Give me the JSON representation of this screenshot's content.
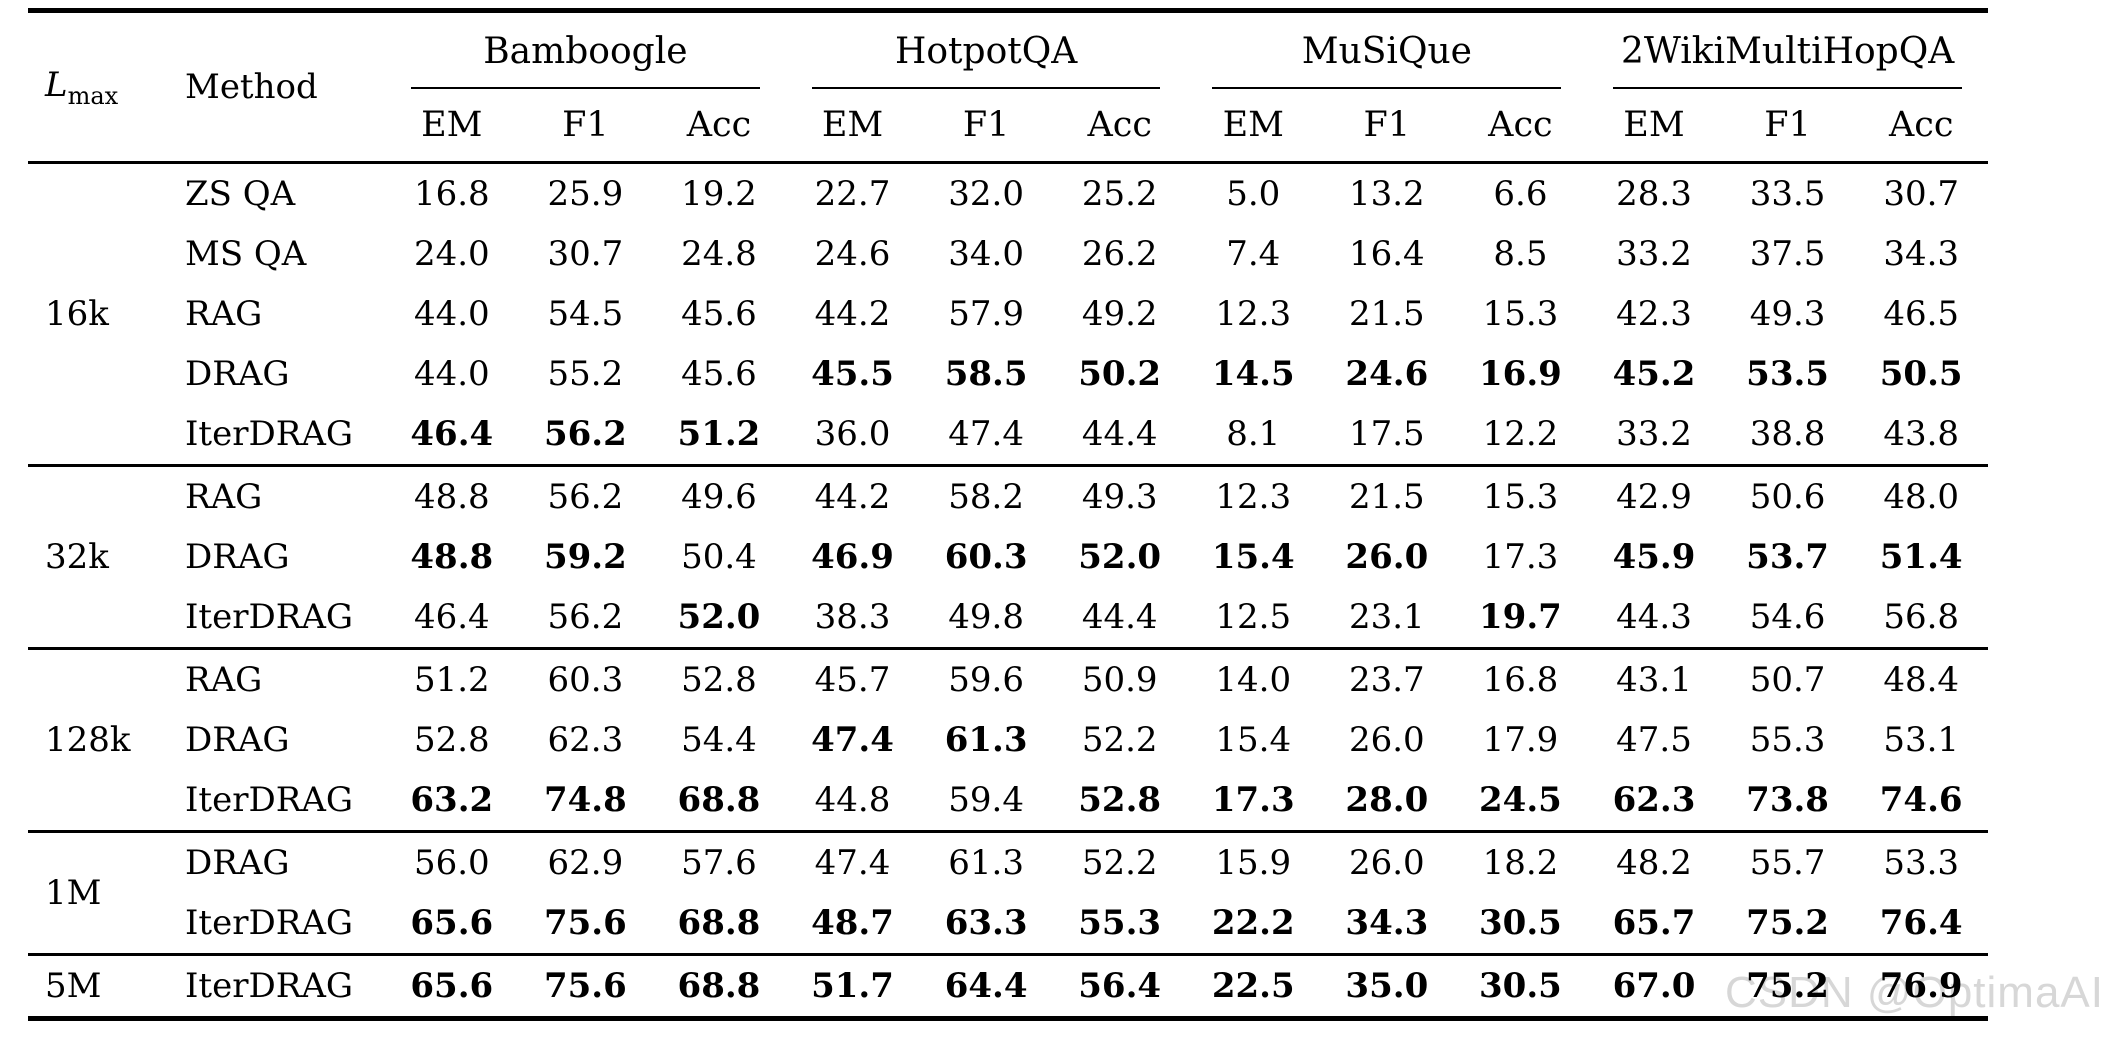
{
  "header": {
    "lmax": {
      "base": "L",
      "sub": "max"
    },
    "method": "Method",
    "groups": [
      "Bamboogle",
      "HotpotQA",
      "MuSiQue",
      "2WikiMultiHopQA"
    ],
    "metrics": [
      "EM",
      "F1",
      "Acc"
    ]
  },
  "sections": [
    {
      "lmax": "16k",
      "rows": [
        {
          "method": "ZS QA",
          "cells": [
            {
              "v": "16.8"
            },
            {
              "v": "25.9"
            },
            {
              "v": "19.2"
            },
            {
              "v": "22.7"
            },
            {
              "v": "32.0"
            },
            {
              "v": "25.2"
            },
            {
              "v": "5.0"
            },
            {
              "v": "13.2"
            },
            {
              "v": "6.6"
            },
            {
              "v": "28.3"
            },
            {
              "v": "33.5"
            },
            {
              "v": "30.7"
            }
          ]
        },
        {
          "method": "MS QA",
          "cells": [
            {
              "v": "24.0"
            },
            {
              "v": "30.7"
            },
            {
              "v": "24.8"
            },
            {
              "v": "24.6"
            },
            {
              "v": "34.0"
            },
            {
              "v": "26.2"
            },
            {
              "v": "7.4"
            },
            {
              "v": "16.4"
            },
            {
              "v": "8.5"
            },
            {
              "v": "33.2"
            },
            {
              "v": "37.5"
            },
            {
              "v": "34.3"
            }
          ]
        },
        {
          "method": "RAG",
          "cells": [
            {
              "v": "44.0"
            },
            {
              "v": "54.5"
            },
            {
              "v": "45.6"
            },
            {
              "v": "44.2"
            },
            {
              "v": "57.9"
            },
            {
              "v": "49.2"
            },
            {
              "v": "12.3"
            },
            {
              "v": "21.5"
            },
            {
              "v": "15.3"
            },
            {
              "v": "42.3"
            },
            {
              "v": "49.3"
            },
            {
              "v": "46.5"
            }
          ]
        },
        {
          "method": "DRAG",
          "cells": [
            {
              "v": "44.0"
            },
            {
              "v": "55.2"
            },
            {
              "v": "45.6"
            },
            {
              "v": "45.5",
              "b": 1
            },
            {
              "v": "58.5",
              "b": 1
            },
            {
              "v": "50.2",
              "b": 1
            },
            {
              "v": "14.5",
              "b": 1
            },
            {
              "v": "24.6",
              "b": 1
            },
            {
              "v": "16.9",
              "b": 1
            },
            {
              "v": "45.2",
              "b": 1
            },
            {
              "v": "53.5",
              "b": 1
            },
            {
              "v": "50.5",
              "b": 1
            }
          ]
        },
        {
          "method": "IterDRAG",
          "cells": [
            {
              "v": "46.4",
              "b": 1
            },
            {
              "v": "56.2",
              "b": 1
            },
            {
              "v": "51.2",
              "b": 1
            },
            {
              "v": "36.0"
            },
            {
              "v": "47.4"
            },
            {
              "v": "44.4"
            },
            {
              "v": "8.1"
            },
            {
              "v": "17.5"
            },
            {
              "v": "12.2"
            },
            {
              "v": "33.2"
            },
            {
              "v": "38.8"
            },
            {
              "v": "43.8"
            }
          ]
        }
      ]
    },
    {
      "lmax": "32k",
      "rows": [
        {
          "method": "RAG",
          "cells": [
            {
              "v": "48.8"
            },
            {
              "v": "56.2"
            },
            {
              "v": "49.6"
            },
            {
              "v": "44.2"
            },
            {
              "v": "58.2"
            },
            {
              "v": "49.3"
            },
            {
              "v": "12.3"
            },
            {
              "v": "21.5"
            },
            {
              "v": "15.3"
            },
            {
              "v": "42.9"
            },
            {
              "v": "50.6"
            },
            {
              "v": "48.0"
            }
          ]
        },
        {
          "method": "DRAG",
          "cells": [
            {
              "v": "48.8",
              "b": 1
            },
            {
              "v": "59.2",
              "b": 1
            },
            {
              "v": "50.4"
            },
            {
              "v": "46.9",
              "b": 1
            },
            {
              "v": "60.3",
              "b": 1
            },
            {
              "v": "52.0",
              "b": 1
            },
            {
              "v": "15.4",
              "b": 1
            },
            {
              "v": "26.0",
              "b": 1
            },
            {
              "v": "17.3"
            },
            {
              "v": "45.9",
              "b": 1
            },
            {
              "v": "53.7",
              "b": 1
            },
            {
              "v": "51.4",
              "b": 1
            }
          ]
        },
        {
          "method": "IterDRAG",
          "cells": [
            {
              "v": "46.4"
            },
            {
              "v": "56.2"
            },
            {
              "v": "52.0",
              "b": 1
            },
            {
              "v": "38.3"
            },
            {
              "v": "49.8"
            },
            {
              "v": "44.4"
            },
            {
              "v": "12.5"
            },
            {
              "v": "23.1"
            },
            {
              "v": "19.7",
              "b": 1
            },
            {
              "v": "44.3"
            },
            {
              "v": "54.6"
            },
            {
              "v": "56.8"
            }
          ]
        }
      ]
    },
    {
      "lmax": "128k",
      "rows": [
        {
          "method": "RAG",
          "cells": [
            {
              "v": "51.2"
            },
            {
              "v": "60.3"
            },
            {
              "v": "52.8"
            },
            {
              "v": "45.7"
            },
            {
              "v": "59.6"
            },
            {
              "v": "50.9"
            },
            {
              "v": "14.0"
            },
            {
              "v": "23.7"
            },
            {
              "v": "16.8"
            },
            {
              "v": "43.1"
            },
            {
              "v": "50.7"
            },
            {
              "v": "48.4"
            }
          ]
        },
        {
          "method": "DRAG",
          "cells": [
            {
              "v": "52.8"
            },
            {
              "v": "62.3"
            },
            {
              "v": "54.4"
            },
            {
              "v": "47.4",
              "b": 1
            },
            {
              "v": "61.3",
              "b": 1
            },
            {
              "v": "52.2"
            },
            {
              "v": "15.4"
            },
            {
              "v": "26.0"
            },
            {
              "v": "17.9"
            },
            {
              "v": "47.5"
            },
            {
              "v": "55.3"
            },
            {
              "v": "53.1"
            }
          ]
        },
        {
          "method": "IterDRAG",
          "cells": [
            {
              "v": "63.2",
              "b": 1
            },
            {
              "v": "74.8",
              "b": 1
            },
            {
              "v": "68.8",
              "b": 1
            },
            {
              "v": "44.8"
            },
            {
              "v": "59.4"
            },
            {
              "v": "52.8",
              "b": 1
            },
            {
              "v": "17.3",
              "b": 1
            },
            {
              "v": "28.0",
              "b": 1
            },
            {
              "v": "24.5",
              "b": 1
            },
            {
              "v": "62.3",
              "b": 1
            },
            {
              "v": "73.8",
              "b": 1
            },
            {
              "v": "74.6",
              "b": 1
            }
          ]
        }
      ]
    },
    {
      "lmax": "1M",
      "rows": [
        {
          "method": "DRAG",
          "cells": [
            {
              "v": "56.0"
            },
            {
              "v": "62.9"
            },
            {
              "v": "57.6"
            },
            {
              "v": "47.4"
            },
            {
              "v": "61.3"
            },
            {
              "v": "52.2"
            },
            {
              "v": "15.9"
            },
            {
              "v": "26.0"
            },
            {
              "v": "18.2"
            },
            {
              "v": "48.2"
            },
            {
              "v": "55.7"
            },
            {
              "v": "53.3"
            }
          ]
        },
        {
          "method": "IterDRAG",
          "cells": [
            {
              "v": "65.6",
              "b": 1
            },
            {
              "v": "75.6",
              "b": 1
            },
            {
              "v": "68.8",
              "b": 1
            },
            {
              "v": "48.7",
              "b": 1
            },
            {
              "v": "63.3",
              "b": 1
            },
            {
              "v": "55.3",
              "b": 1
            },
            {
              "v": "22.2",
              "b": 1
            },
            {
              "v": "34.3",
              "b": 1
            },
            {
              "v": "30.5",
              "b": 1
            },
            {
              "v": "65.7",
              "b": 1
            },
            {
              "v": "75.2",
              "b": 1
            },
            {
              "v": "76.4",
              "b": 1
            }
          ]
        }
      ]
    },
    {
      "lmax": "5M",
      "rows": [
        {
          "method": "IterDRAG",
          "cells": [
            {
              "v": "65.6",
              "b": 1
            },
            {
              "v": "75.6",
              "b": 1
            },
            {
              "v": "68.8",
              "b": 1
            },
            {
              "v": "51.7",
              "b": 1
            },
            {
              "v": "64.4",
              "b": 1
            },
            {
              "v": "56.4",
              "b": 1
            },
            {
              "v": "22.5",
              "b": 1
            },
            {
              "v": "35.0",
              "b": 1
            },
            {
              "v": "30.5",
              "b": 1
            },
            {
              "v": "67.0",
              "b": 1
            },
            {
              "v": "75.2",
              "b": 1
            },
            {
              "v": "76.9",
              "b": 1
            }
          ]
        }
      ]
    }
  ],
  "watermark": {
    "text": "CSDN @OptimaAI",
    "color": "#d7d7d7"
  },
  "colors": {
    "text": "#000000",
    "rules": "#000000",
    "background": "#ffffff"
  }
}
